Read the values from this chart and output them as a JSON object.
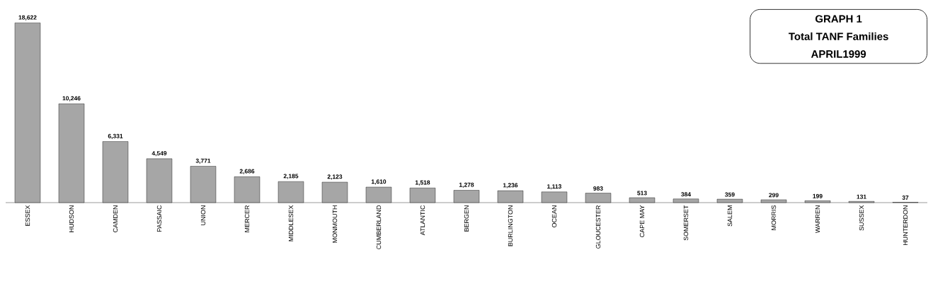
{
  "chart_data": {
    "type": "bar",
    "title": "GRAPH 1",
    "subtitle": "Total TANF Families",
    "annotations": [
      "APRIL1999"
    ],
    "categories": [
      "ESSEX",
      "HUDSON",
      "CAMDEN",
      "PASSAIC",
      "UNION",
      "MERCER",
      "MIDDLESEX",
      "MONMOUTH",
      "CUMBERLAND",
      "ATLANTIC",
      "BERGEN",
      "BURLINGTON",
      "OCEAN",
      "GLOUCESTER",
      "CAPE MAY",
      "SOMERSET",
      "SALEM",
      "MORRIS",
      "WARREN",
      "SUSSEX",
      "HUNTERDON"
    ],
    "values": [
      18622,
      10246,
      6331,
      4549,
      3771,
      2686,
      2185,
      2123,
      1610,
      1518,
      1278,
      1236,
      1113,
      983,
      513,
      384,
      359,
      299,
      199,
      131,
      37
    ],
    "value_labels": [
      "18,622",
      "10,246",
      "6,331",
      "4,549",
      "3,771",
      "2,686",
      "2,185",
      "2,123",
      "1,610",
      "1,518",
      "1,278",
      "1,236",
      "1,113",
      "983",
      "513",
      "384",
      "359",
      "299",
      "199",
      "131",
      "37"
    ],
    "color": "#a6a6a6"
  }
}
